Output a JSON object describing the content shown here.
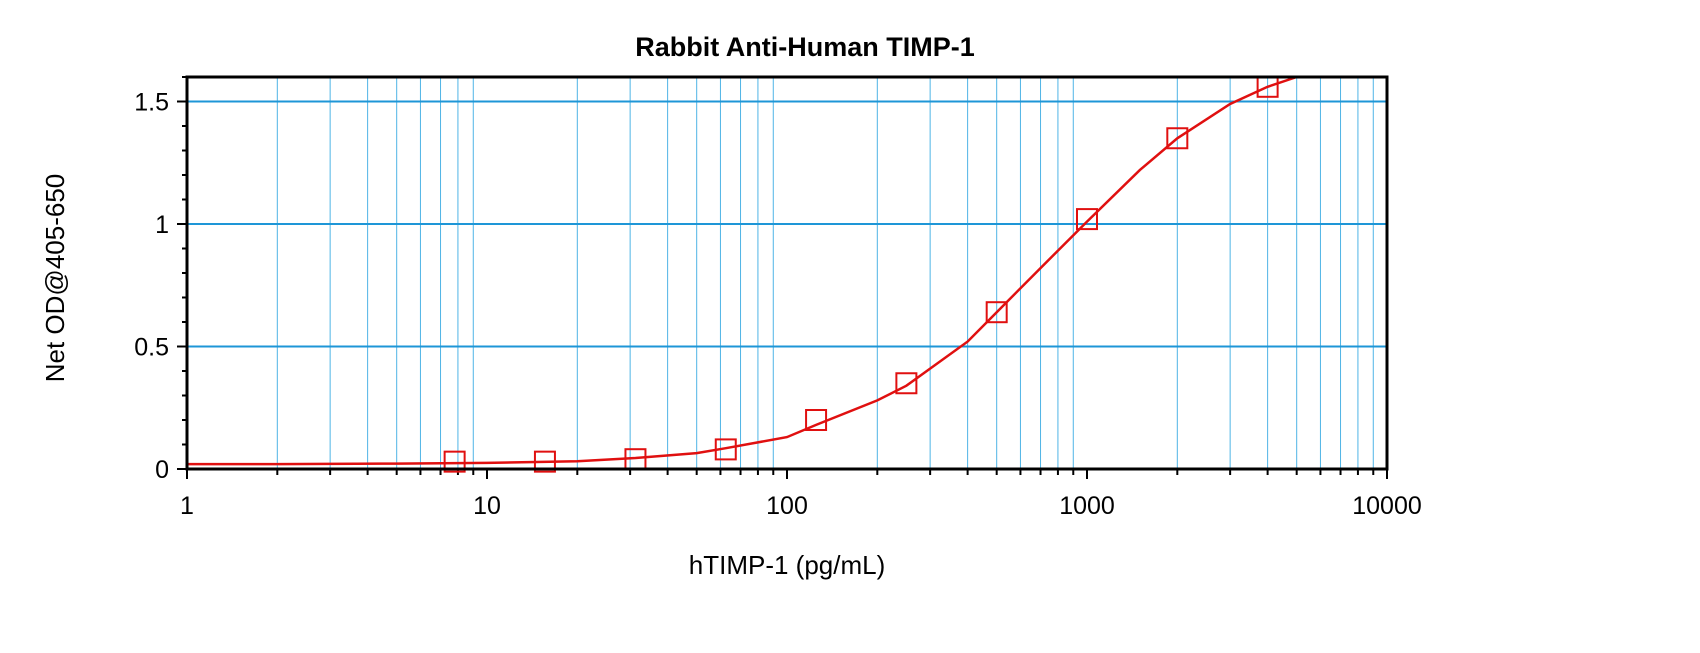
{
  "chart_data": {
    "type": "scatter",
    "title": "Rabbit Anti-Human TIMP-1",
    "xlabel": "hTIMP-1 (pg/mL)",
    "ylabel": "Net OD@405-650",
    "x_scale": "log",
    "xlim": [
      1,
      10000
    ],
    "ylim": [
      0,
      1.6
    ],
    "grid": true,
    "x_ticks": [
      "1",
      "10",
      "100",
      "1000",
      "10000"
    ],
    "y_ticks": [
      "0",
      "0.5",
      "1",
      "1.5"
    ],
    "series": [
      {
        "type": "scatter",
        "marker": "square",
        "color": "#e01010",
        "x": [
          7.8,
          15.6,
          31.25,
          62.5,
          125,
          250,
          500,
          1000,
          2000,
          4000
        ],
        "y": [
          0.03,
          0.03,
          0.04,
          0.08,
          0.2,
          0.35,
          0.64,
          1.02,
          1.35,
          1.56
        ]
      },
      {
        "type": "line",
        "color": "#e01010",
        "x": [
          1,
          2,
          5,
          10,
          20,
          31.25,
          50,
          62.5,
          100,
          125,
          200,
          250,
          400,
          500,
          700,
          1000,
          1500,
          2000,
          3000,
          4000,
          5000
        ],
        "y": [
          0.02,
          0.02,
          0.022,
          0.025,
          0.032,
          0.045,
          0.065,
          0.085,
          0.13,
          0.18,
          0.28,
          0.34,
          0.52,
          0.64,
          0.82,
          1.01,
          1.22,
          1.35,
          1.49,
          1.56,
          1.6
        ]
      }
    ]
  }
}
